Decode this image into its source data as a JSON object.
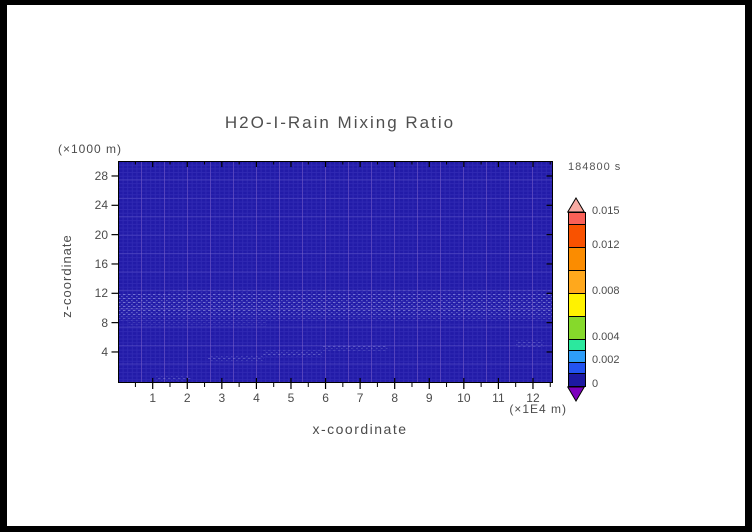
{
  "title": "H2O-I-Rain Mixing Ratio",
  "time_label": "184800 s",
  "axes": {
    "x": {
      "label": "x-coordinate",
      "unit_label": "(×1E4 m)",
      "ticks": [
        1,
        2,
        3,
        4,
        5,
        6,
        7,
        8,
        9,
        10,
        11,
        12
      ],
      "range": [
        0,
        12.6
      ]
    },
    "z": {
      "label": "z-coordinate",
      "unit_label": "(×1000 m)",
      "ticks": [
        4,
        8,
        12,
        16,
        20,
        24,
        28
      ],
      "range": [
        0,
        30
      ]
    }
  },
  "chart_data": {
    "type": "heatmap",
    "title": "H2O-I-Rain Mixing Ratio",
    "xlabel": "x-coordinate (×1E4 m)",
    "ylabel": "z-coordinate (×1000 m)",
    "time_stamp": "184800 s",
    "x_range": [
      0,
      12.6
    ],
    "z_range": [
      0,
      30
    ],
    "grid": "fine model mesh visible over field",
    "background_value": "≈0 (below first contour level, dark blue)",
    "features": [
      {
        "name": "rain-band-core",
        "x0": 0,
        "x1": 12.58,
        "z0": 9.0,
        "z1": 12.0,
        "value": "~0.001",
        "op": 0.55
      },
      {
        "name": "rain-band-lower",
        "x0": 0,
        "x1": 12.58,
        "z0": 8.3,
        "z1": 9.0,
        "value": "~0.0005",
        "op": 0.32
      },
      {
        "name": "rain-band-fringe",
        "x0": 1.5,
        "x1": 12.58,
        "z0": 12.0,
        "z1": 12.6,
        "value": "trace",
        "op": 0.18
      },
      {
        "name": "band-left-ext",
        "x0": 0.3,
        "x1": 4.3,
        "z0": 7.5,
        "z1": 8.3,
        "value": "trace",
        "op": 0.2
      },
      {
        "name": "trail-1",
        "x0": 2.6,
        "x1": 4.2,
        "z0": 2.8,
        "z1": 3.6,
        "value": "trace",
        "op": 0.35
      },
      {
        "name": "trail-2",
        "x0": 4.2,
        "x1": 5.9,
        "z0": 3.4,
        "z1": 4.2,
        "value": "trace",
        "op": 0.4
      },
      {
        "name": "trail-3",
        "x0": 5.9,
        "x1": 7.8,
        "z0": 4.2,
        "z1": 4.9,
        "value": "trace",
        "op": 0.35
      },
      {
        "name": "bottom-left-cluster",
        "x0": 1.1,
        "x1": 2.1,
        "z0": 0.1,
        "z1": 0.7,
        "value": "trace",
        "op": 0.3
      },
      {
        "name": "right-cluster",
        "x0": 11.5,
        "x1": 12.3,
        "z0": 4.7,
        "z1": 5.6,
        "value": "trace",
        "op": 0.3
      }
    ],
    "colorbar": {
      "levels": [
        0,
        0.001,
        0.002,
        0.003,
        0.004,
        0.006,
        0.008,
        0.01,
        0.012,
        0.014,
        0.015
      ],
      "colors": [
        "#1D19A2",
        "#2353F0",
        "#2E9DF8",
        "#2BE89E",
        "#86D92B",
        "#FFF200",
        "#FFA81C",
        "#FB8C00",
        "#F95200",
        "#F96057"
      ],
      "under_color": "#7D00BE",
      "over_color": "#F8ABA3",
      "tick_labels": [
        "0",
        "0.002",
        "0.004",
        "0.008",
        "0.012",
        "0.015"
      ],
      "tick_values": [
        0,
        0.002,
        0.004,
        0.008,
        0.012,
        0.015
      ]
    },
    "colors": {
      "plot_bg": "#221BA8",
      "text": "#4b4b4b"
    }
  }
}
